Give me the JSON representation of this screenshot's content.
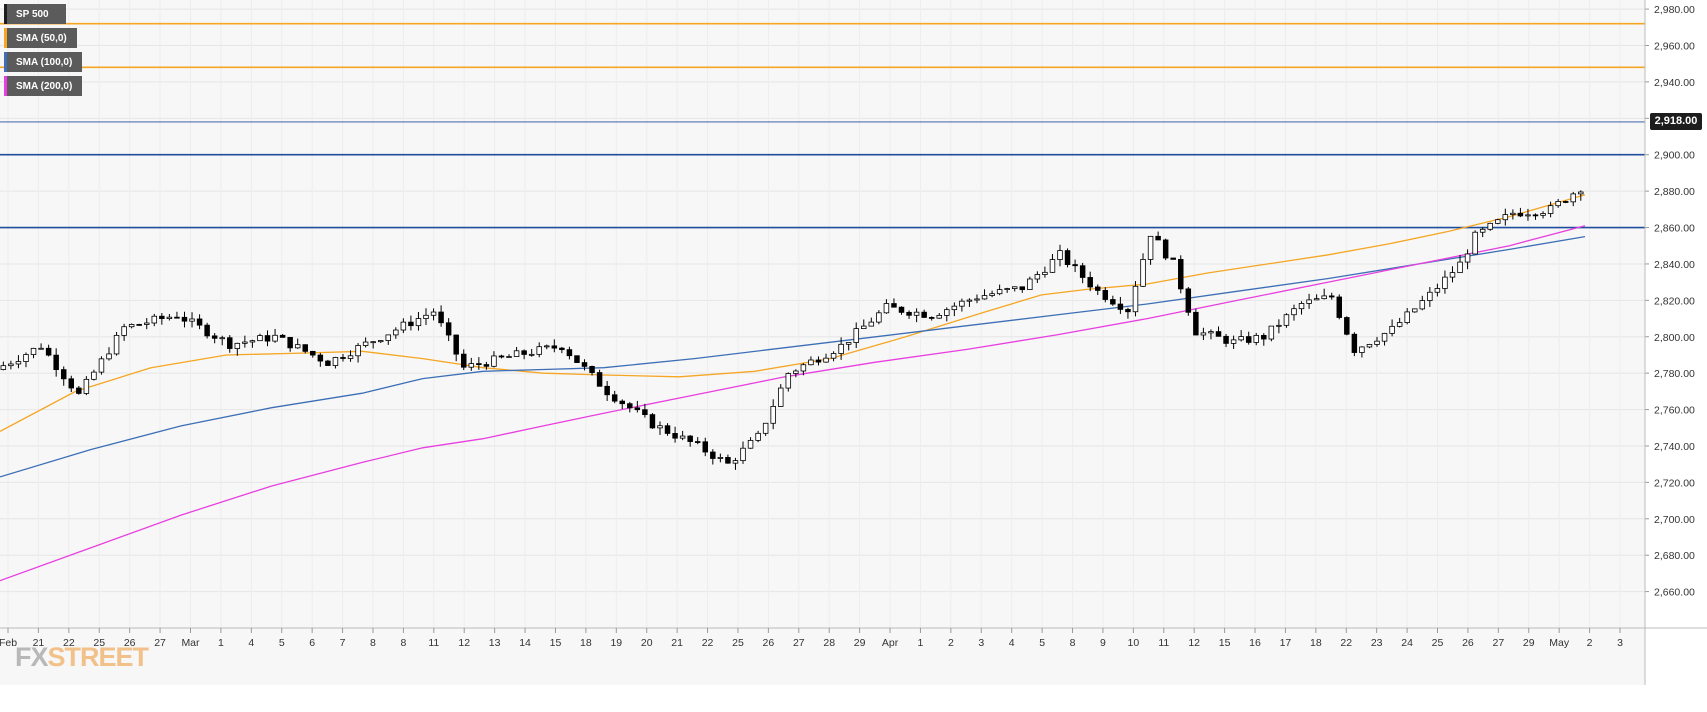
{
  "chart_data": {
    "type": "candlestick",
    "instrument": "SP 500",
    "timeframe_hint": "intraday candles, Feb 21 - May 2",
    "y_axis": {
      "ylim": [
        2640,
        2985
      ],
      "ticks": [
        "2,660.00",
        "2,680.00",
        "2,700.00",
        "2,720.00",
        "2,740.00",
        "2,760.00",
        "2,780.00",
        "2,800.00",
        "2,820.00",
        "2,840.00",
        "2,860.00",
        "2,880.00",
        "2,900.00",
        "2,920.00",
        "2,940.00",
        "2,960.00",
        "2,980.00"
      ],
      "tick_values": [
        2660,
        2680,
        2700,
        2720,
        2740,
        2760,
        2780,
        2800,
        2820,
        2840,
        2860,
        2880,
        2900,
        2920,
        2940,
        2960,
        2980
      ],
      "position": "right"
    },
    "x_axis": {
      "labels": [
        "Feb",
        "21",
        "22",
        "25",
        "26",
        "27",
        "Mar",
        "1",
        "4",
        "5",
        "6",
        "7",
        "8",
        "8",
        "11",
        "12",
        "13",
        "14",
        "15",
        "18",
        "19",
        "20",
        "21",
        "22",
        "25",
        "26",
        "27",
        "28",
        "29",
        "Apr",
        "1",
        "2",
        "3",
        "4",
        "5",
        "8",
        "9",
        "10",
        "11",
        "12",
        "15",
        "16",
        "17",
        "18",
        "22",
        "23",
        "24",
        "25",
        "26",
        "27",
        "29",
        "May",
        "2",
        "3"
      ]
    },
    "current_price": {
      "value": 2918,
      "label": "2,918.00"
    },
    "horizontal_levels": [
      {
        "value": 2972,
        "color": "#f5a623",
        "kind": "resistance"
      },
      {
        "value": 2948,
        "color": "#f5a623",
        "kind": "resistance"
      },
      {
        "value": 2900,
        "color": "#1f4e9c",
        "kind": "support"
      },
      {
        "value": 2860,
        "color": "#1f4e9c",
        "kind": "support"
      }
    ],
    "candles": {
      "start": 2782,
      "count": 210,
      "waypoints": [
        [
          0,
          2782
        ],
        [
          6,
          2795
        ],
        [
          11,
          2768
        ],
        [
          17,
          2805
        ],
        [
          24,
          2812
        ],
        [
          31,
          2796
        ],
        [
          37,
          2800
        ],
        [
          44,
          2786
        ],
        [
          51,
          2800
        ],
        [
          58,
          2814
        ],
        [
          62,
          2783
        ],
        [
          69,
          2790
        ],
        [
          75,
          2795
        ],
        [
          81,
          2770
        ],
        [
          87,
          2752
        ],
        [
          93,
          2740
        ],
        [
          97,
          2730
        ],
        [
          101,
          2745
        ],
        [
          105,
          2780
        ],
        [
          112,
          2795
        ],
        [
          118,
          2816
        ],
        [
          124,
          2812
        ],
        [
          130,
          2822
        ],
        [
          136,
          2827
        ],
        [
          141,
          2845
        ],
        [
          146,
          2825
        ],
        [
          150,
          2815
        ],
        [
          153,
          2857
        ],
        [
          156,
          2840
        ],
        [
          159,
          2803
        ],
        [
          164,
          2797
        ],
        [
          168,
          2800
        ],
        [
          173,
          2818
        ],
        [
          177,
          2822
        ],
        [
          180,
          2793
        ],
        [
          185,
          2804
        ],
        [
          190,
          2823
        ],
        [
          194,
          2840
        ],
        [
          196,
          2855
        ],
        [
          201,
          2868
        ],
        [
          206,
          2870
        ],
        [
          210,
          2882
        ]
      ]
    },
    "series": [
      {
        "name": "SMA (50,0)",
        "color": "#f5a623",
        "points": [
          [
            0,
            2748
          ],
          [
            10,
            2770
          ],
          [
            20,
            2783
          ],
          [
            30,
            2790
          ],
          [
            40,
            2791
          ],
          [
            48,
            2792
          ],
          [
            56,
            2788
          ],
          [
            64,
            2783
          ],
          [
            72,
            2780
          ],
          [
            80,
            2779
          ],
          [
            90,
            2778
          ],
          [
            100,
            2781
          ],
          [
            110,
            2788
          ],
          [
            120,
            2800
          ],
          [
            130,
            2813
          ],
          [
            138,
            2823
          ],
          [
            144,
            2826
          ],
          [
            152,
            2829
          ],
          [
            160,
            2835
          ],
          [
            168,
            2840
          ],
          [
            176,
            2845
          ],
          [
            184,
            2851
          ],
          [
            192,
            2858
          ],
          [
            200,
            2866
          ],
          [
            210,
            2878
          ]
        ]
      },
      {
        "name": "SMA (100,0)",
        "color": "#3d6fb6",
        "points": [
          [
            0,
            2723
          ],
          [
            12,
            2738
          ],
          [
            24,
            2751
          ],
          [
            36,
            2761
          ],
          [
            48,
            2769
          ],
          [
            56,
            2777
          ],
          [
            64,
            2781
          ],
          [
            72,
            2782
          ],
          [
            80,
            2783
          ],
          [
            92,
            2788
          ],
          [
            104,
            2794
          ],
          [
            116,
            2800
          ],
          [
            128,
            2806
          ],
          [
            140,
            2812
          ],
          [
            152,
            2818
          ],
          [
            164,
            2825
          ],
          [
            176,
            2832
          ],
          [
            188,
            2840
          ],
          [
            200,
            2848
          ],
          [
            210,
            2855
          ]
        ]
      },
      {
        "name": "SMA (200,0)",
        "color": "#e83fe0",
        "points": [
          [
            0,
            2666
          ],
          [
            12,
            2684
          ],
          [
            24,
            2702
          ],
          [
            36,
            2718
          ],
          [
            48,
            2731
          ],
          [
            56,
            2739
          ],
          [
            64,
            2744
          ],
          [
            72,
            2751
          ],
          [
            80,
            2758
          ],
          [
            92,
            2768
          ],
          [
            104,
            2778
          ],
          [
            116,
            2786
          ],
          [
            128,
            2793
          ],
          [
            140,
            2801
          ],
          [
            152,
            2810
          ],
          [
            164,
            2820
          ],
          [
            176,
            2830
          ],
          [
            188,
            2840
          ],
          [
            200,
            2850
          ],
          [
            210,
            2861
          ]
        ]
      }
    ]
  },
  "legend": [
    {
      "label": "SP 500",
      "color": "#1d1d1d"
    },
    {
      "label": "SMA (50,0)",
      "color": "#f5a623"
    },
    {
      "label": "SMA (100,0)",
      "color": "#3d6fb6"
    },
    {
      "label": "SMA (200,0)",
      "color": "#e83fe0"
    }
  ],
  "logo": {
    "fx": "FX",
    "street": "STREET"
  },
  "colors": {
    "background": "#f7f7f7",
    "grid": "#e6e6e6",
    "candle_up": "#ffffff",
    "candle_down": "#000000",
    "axis_text": "#333333"
  }
}
